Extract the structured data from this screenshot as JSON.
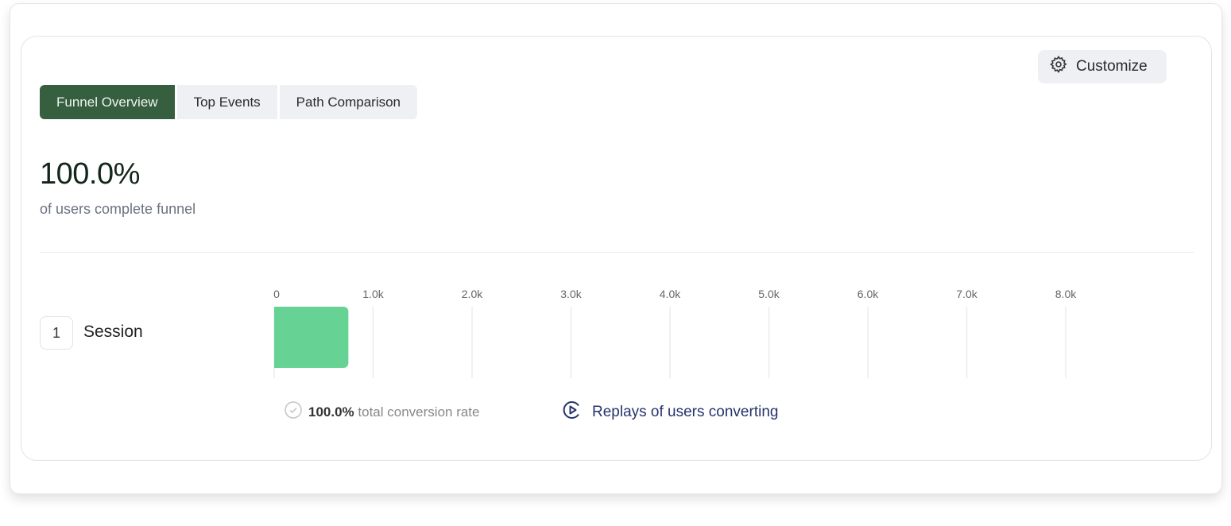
{
  "toolbar": {
    "customize_label": "Customize"
  },
  "tabs": [
    {
      "label": "Funnel Overview",
      "active": true
    },
    {
      "label": "Top Events",
      "active": false
    },
    {
      "label": "Path Comparison",
      "active": false
    }
  ],
  "summary": {
    "value": "100.0%",
    "caption": "of users complete funnel"
  },
  "steps": [
    {
      "number": "1",
      "label": "Session"
    }
  ],
  "chart_data": {
    "type": "bar",
    "orientation": "horizontal",
    "categories": [
      "Session"
    ],
    "values": [
      750
    ],
    "xlim": [
      0,
      8000
    ],
    "ticks": [
      0,
      1000,
      2000,
      3000,
      4000,
      5000,
      6000,
      7000,
      8000
    ],
    "tick_labels": [
      "0",
      "1.0k",
      "2.0k",
      "3.0k",
      "4.0k",
      "5.0k",
      "6.0k",
      "7.0k",
      "8.0k"
    ],
    "grid": true,
    "bar_color": "#66d394"
  },
  "footer": {
    "conversion_value": "100.0%",
    "conversion_label": "total conversion rate",
    "replays_link": "Replays of users converting"
  },
  "colors": {
    "accent": "#355f3f",
    "link": "#27336b"
  }
}
